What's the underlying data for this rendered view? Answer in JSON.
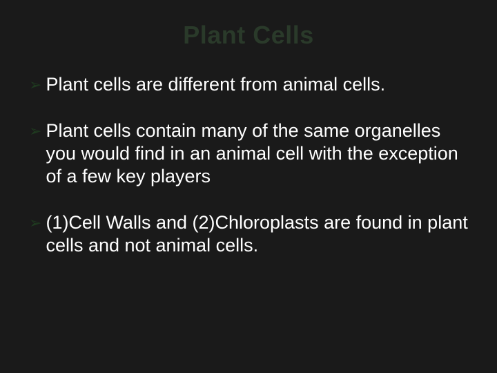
{
  "slide": {
    "background_color": "#1a1a1a",
    "title": {
      "text": "Plant Cells",
      "color": "#2a3a2a",
      "fontsize": 36,
      "weight": "bold",
      "align": "center"
    },
    "bullet_marker": {
      "glyph": "➢",
      "color": "#1f3a20",
      "fontsize": 22
    },
    "body_text": {
      "color": "#ffffff",
      "fontsize": 27,
      "line_height": 1.22
    },
    "bullets": [
      "Plant cells are different from animal cells.",
      "Plant cells contain many of the same organelles you would find in an animal cell with the exception of a few key players",
      "(1)Cell Walls and (2)Chloroplasts are found in plant cells and not animal cells."
    ]
  }
}
